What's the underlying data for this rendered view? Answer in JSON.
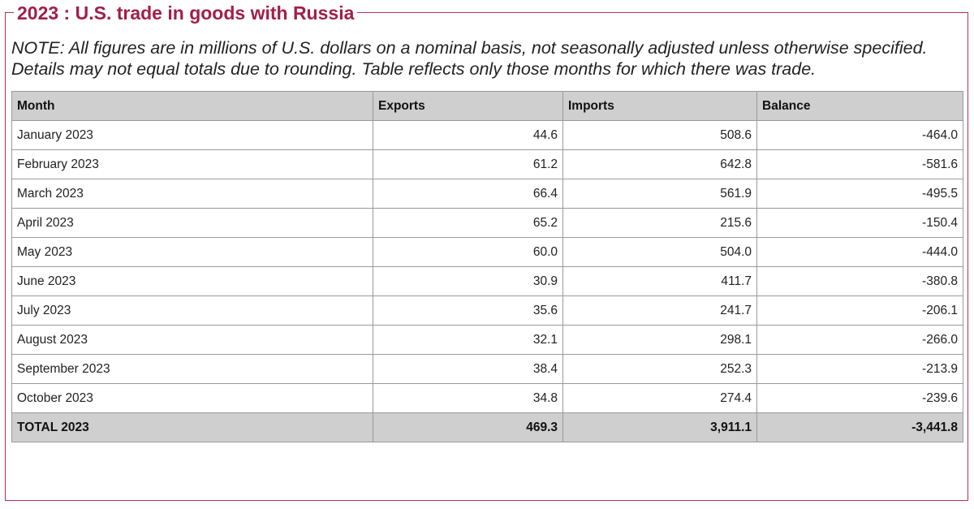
{
  "title": "2023 : U.S. trade in goods with Russia",
  "note": "NOTE: All figures are in millions of U.S. dollars on a nominal basis, not seasonally adjusted unless otherwise specified. Details may not equal totals due to rounding. Table reflects only those months for which there was trade.",
  "table": {
    "headers": [
      "Month",
      "Exports",
      "Imports",
      "Balance"
    ],
    "rows": [
      {
        "month": "January 2023",
        "exports": "44.6",
        "imports": "508.6",
        "balance": "-464.0"
      },
      {
        "month": "February 2023",
        "exports": "61.2",
        "imports": "642.8",
        "balance": "-581.6"
      },
      {
        "month": "March 2023",
        "exports": "66.4",
        "imports": "561.9",
        "balance": "-495.5"
      },
      {
        "month": "April 2023",
        "exports": "65.2",
        "imports": "215.6",
        "balance": "-150.4"
      },
      {
        "month": "May 2023",
        "exports": "60.0",
        "imports": "504.0",
        "balance": "-444.0"
      },
      {
        "month": "June 2023",
        "exports": "30.9",
        "imports": "411.7",
        "balance": "-380.8"
      },
      {
        "month": "July 2023",
        "exports": "35.6",
        "imports": "241.7",
        "balance": "-206.1"
      },
      {
        "month": "August 2023",
        "exports": "32.1",
        "imports": "298.1",
        "balance": "-266.0"
      },
      {
        "month": "September 2023",
        "exports": "38.4",
        "imports": "252.3",
        "balance": "-213.9"
      },
      {
        "month": "October 2023",
        "exports": "34.8",
        "imports": "274.4",
        "balance": "-239.6"
      }
    ],
    "total": {
      "month": "TOTAL 2023",
      "exports": "469.3",
      "imports": "3,911.1",
      "balance": "-3,441.8"
    }
  },
  "colors": {
    "accent": "#a01f48",
    "border": "#b0305a",
    "header_bg": "#cfcfcf",
    "grid": "#9a9a9a"
  }
}
